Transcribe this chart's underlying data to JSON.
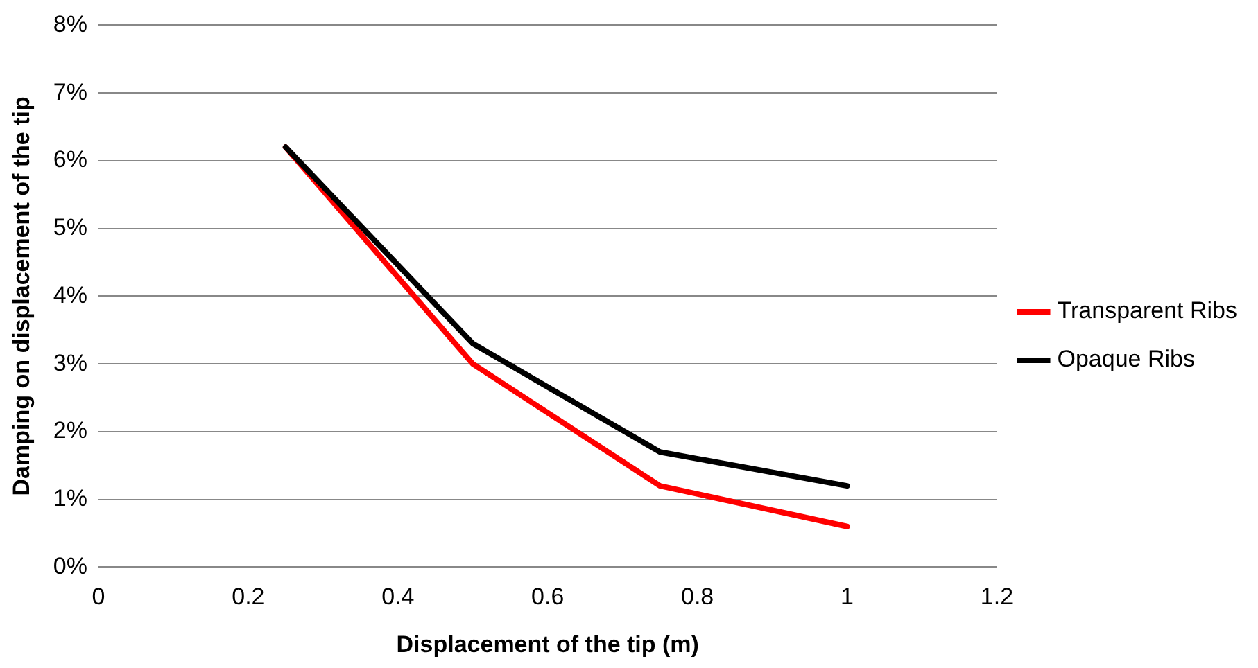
{
  "chart_data": {
    "type": "line",
    "xlabel": "Displacement of the tip (m)",
    "ylabel": "Damping on displacement of the tip",
    "xlim": [
      0,
      1.2
    ],
    "xticks": [
      0,
      0.2,
      0.4,
      0.6,
      0.8,
      1,
      1.2
    ],
    "ylim": [
      0,
      8
    ],
    "yticks": [
      {
        "value": 0,
        "label": "0%"
      },
      {
        "value": 1,
        "label": "1%"
      },
      {
        "value": 2,
        "label": "2%"
      },
      {
        "value": 3,
        "label": "3%"
      },
      {
        "value": 4,
        "label": "4%"
      },
      {
        "value": 5,
        "label": "5%"
      },
      {
        "value": 6,
        "label": "6%"
      },
      {
        "value": 7,
        "label": "7%"
      },
      {
        "value": 8,
        "label": "8%"
      }
    ],
    "grid": "y",
    "legend": "right",
    "marker": "none",
    "series": [
      {
        "name": "Transparent Ribs",
        "color": "#ff0000",
        "x": [
          0.25,
          0.5,
          0.75,
          1
        ],
        "values": [
          6.2,
          3.0,
          1.2,
          0.6
        ]
      },
      {
        "name": "Opaque Ribs",
        "color": "#000000",
        "x": [
          0.25,
          0.5,
          0.75,
          1
        ],
        "values": [
          6.2,
          3.3,
          1.7,
          1.2
        ]
      }
    ]
  }
}
